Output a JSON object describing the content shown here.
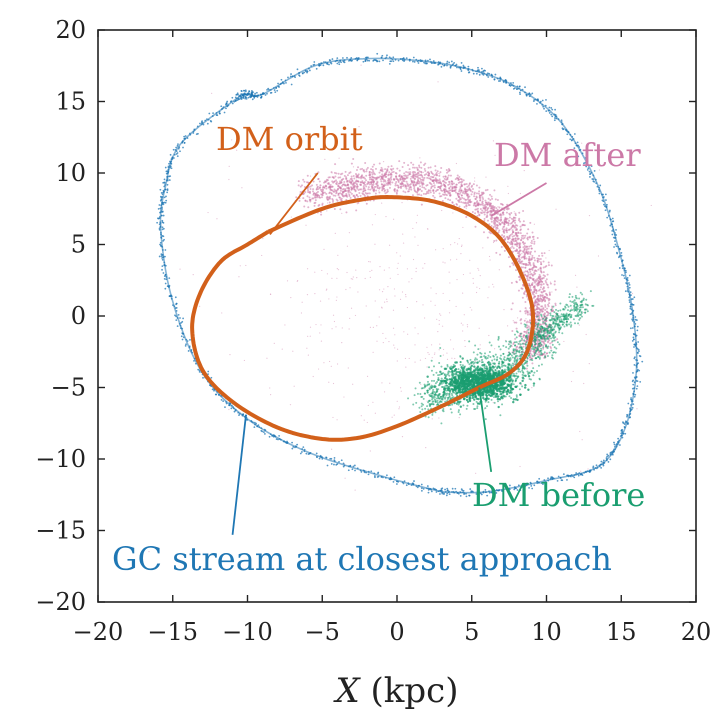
{
  "chart_data": {
    "type": "scatter",
    "xlabel": "X (kpc)",
    "xlabel_italic_part": "X",
    "xlabel_unit_part": "(kpc)",
    "ylabel": "",
    "xlim": [
      -20,
      20
    ],
    "ylim": [
      -20,
      20
    ],
    "x_ticks": [
      -20,
      -15,
      -10,
      -5,
      0,
      5,
      10,
      15,
      20
    ],
    "y_ticks": [
      -20,
      -15,
      -10,
      -5,
      0,
      5,
      10,
      15,
      20
    ],
    "x_tick_labels": [
      "−20",
      "−15",
      "−10",
      "−5",
      "0",
      "5",
      "10",
      "15",
      "20"
    ],
    "y_tick_labels": [
      "−20",
      "−15",
      "−10",
      "−5",
      "0",
      "5",
      "10",
      "15",
      "20"
    ],
    "grid": false,
    "colors": {
      "gc_stream": "#1f77b4",
      "dm_after": "#cc79a7",
      "dm_before": "#1a9e70",
      "dm_orbit": "#d2601a"
    },
    "series": [
      {
        "key": "dm_orbit",
        "type": "line",
        "points": [
          [
            -8.6,
            5.9
          ],
          [
            -5,
            7.5
          ],
          [
            -2,
            8.2
          ],
          [
            0,
            8.3
          ],
          [
            2.5,
            8.0
          ],
          [
            5,
            7.0
          ],
          [
            7,
            5.3
          ],
          [
            8.5,
            2.5
          ],
          [
            9.1,
            0
          ],
          [
            8.7,
            -2.5
          ],
          [
            7.5,
            -4.0
          ],
          [
            5.5,
            -5.0
          ],
          [
            3,
            -6.3
          ],
          [
            0,
            -7.7
          ],
          [
            -2.5,
            -8.5
          ],
          [
            -5,
            -8.6
          ],
          [
            -8,
            -7.8
          ],
          [
            -11,
            -6.0
          ],
          [
            -13.0,
            -3.8
          ],
          [
            -13.7,
            -1.0
          ],
          [
            -13.2,
            1.5
          ],
          [
            -11.8,
            3.8
          ],
          [
            -10,
            5.0
          ],
          [
            -8.6,
            5.9
          ]
        ]
      },
      {
        "key": "gc_stream",
        "type": "line",
        "points": [
          [
            3,
            -12.3
          ],
          [
            -1,
            -11.2
          ],
          [
            -6,
            -9.5
          ],
          [
            -10,
            -7.2
          ],
          [
            -13,
            -4.0
          ],
          [
            -15,
            1.0
          ],
          [
            -15.8,
            6.0
          ],
          [
            -15.5,
            9.0
          ],
          [
            -14.5,
            12.0
          ],
          [
            -11,
            15.0
          ],
          [
            -10,
            15.5
          ],
          [
            -9,
            15.5
          ],
          [
            -5.5,
            17.5
          ],
          [
            -2,
            18.0
          ],
          [
            2,
            17.8
          ],
          [
            5,
            17.2
          ],
          [
            8,
            16.0
          ],
          [
            11,
            13.5
          ],
          [
            13.5,
            9.0
          ],
          [
            15,
            4.0
          ],
          [
            15.8,
            0
          ],
          [
            16,
            -4.0
          ],
          [
            15.2,
            -8.0
          ],
          [
            13.5,
            -10.5
          ],
          [
            10,
            -11.5
          ],
          [
            6,
            -12.3
          ],
          [
            3,
            -12.3
          ]
        ]
      },
      {
        "key": "dm_after",
        "type": "scatter",
        "points": [
          [
            -6,
            8.5
          ],
          [
            -4,
            9.0
          ],
          [
            -2,
            9.3
          ],
          [
            0,
            9.5
          ],
          [
            2,
            9.4
          ],
          [
            4,
            8.8
          ],
          [
            6,
            7.6
          ],
          [
            7.5,
            6.0
          ],
          [
            8.7,
            4.0
          ],
          [
            9.3,
            2.0
          ],
          [
            9.5,
            0
          ],
          [
            9.3,
            -1.5
          ],
          [
            8.8,
            -2.5
          ]
        ]
      },
      {
        "key": "dm_before",
        "type": "scatter",
        "points": [
          [
            2,
            -6.0
          ],
          [
            3,
            -5.3
          ],
          [
            4,
            -4.8
          ],
          [
            5,
            -4.4
          ],
          [
            6,
            -4.3
          ],
          [
            7,
            -4.2
          ],
          [
            8,
            -3.3
          ],
          [
            9,
            -2.2
          ],
          [
            10,
            -1.0
          ],
          [
            11,
            -0.2
          ],
          [
            12,
            0.6
          ],
          [
            3.5,
            -5.8
          ]
        ]
      }
    ],
    "annotations": [
      {
        "key": "dm_orbit",
        "text": "DM orbit",
        "xy": [
          -8.5,
          5.7
        ],
        "text_anchor_xy": [
          -3.5,
          11.5
        ]
      },
      {
        "key": "dm_after",
        "text": "DM after",
        "xy": [
          6.3,
          7.0
        ],
        "text_anchor_xy": [
          10.5,
          10.0
        ]
      },
      {
        "key": "dm_before",
        "text": "DM before",
        "xy": [
          5.5,
          -5.0
        ],
        "text_anchor_xy": [
          6.0,
          -12.6
        ]
      },
      {
        "key": "gc_stream",
        "text": "GC stream at closest approach",
        "xy": [
          -10.1,
          -6.9
        ],
        "text_anchor_xy": [
          -11.0,
          -17.4
        ]
      }
    ]
  }
}
